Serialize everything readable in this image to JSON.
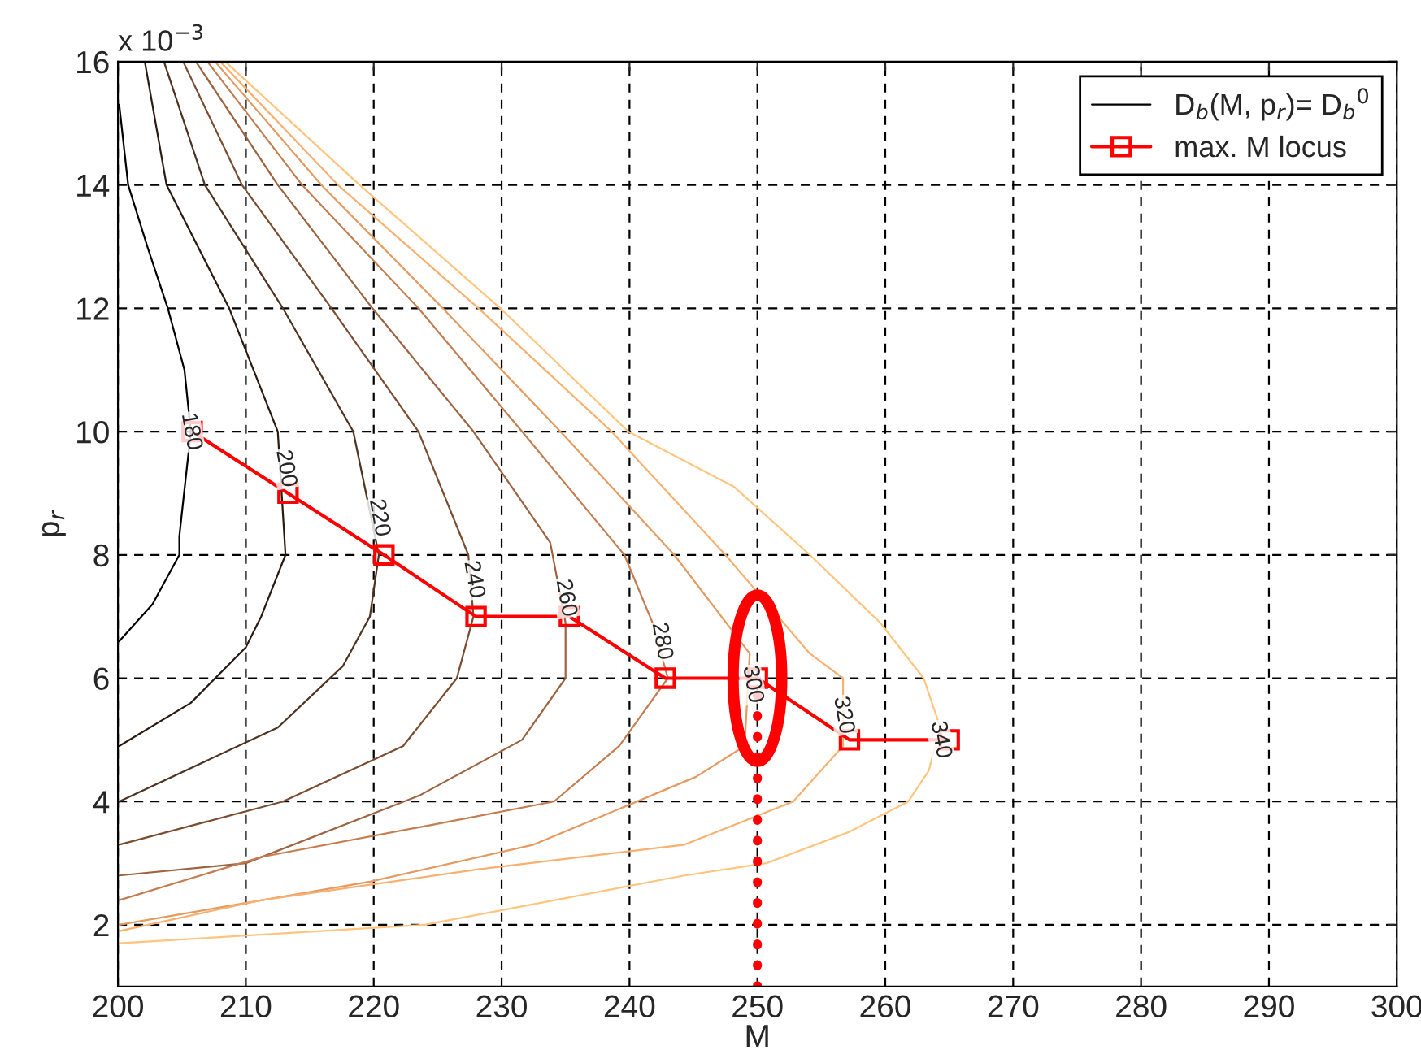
{
  "chart_data": {
    "type": "line",
    "xlabel": "M",
    "ylabel": "p$_{r}$",
    "xlim": [
      200,
      300
    ],
    "xticks": [
      200,
      210,
      220,
      230,
      240,
      250,
      260,
      270,
      280,
      290,
      300
    ],
    "ylim": [
      1,
      16
    ],
    "yticks": [
      2,
      4,
      6,
      8,
      10,
      12,
      14,
      16
    ],
    "grid": true,
    "legend": "top right",
    "marker": "none",
    "line_style": "solid",
    "annotations": [
      "x 10$^{−3}$",
      {
        "text": "180",
        "x": 205.7,
        "y": 10
      },
      {
        "text": "200",
        "x": 213.1,
        "y": 9.4
      },
      {
        "text": "220",
        "x": 220.4,
        "y": 8.6
      },
      {
        "text": "240",
        "x": 227.8,
        "y": 7.6
      },
      {
        "text": "260",
        "x": 235,
        "y": 7.3
      },
      {
        "text": "280",
        "x": 242.5,
        "y": 6.6
      },
      {
        "text": "300",
        "x": 249.6,
        "y": 5.9
      },
      {
        "text": "320",
        "x": 256.7,
        "y": 5.4
      },
      {
        "text": "340",
        "x": 264.3,
        "y": 5
      }
    ],
    "series": [
      {
        "name": "D$_{b}$(M, p$_{r}$)= D$_{b}$$^{0}$",
        "color": "#000000",
        "x": [
          200.1,
          200.8,
          202.3,
          203.9,
          205.2,
          205.7,
          204.8,
          204.8,
          202.7,
          200.1
        ],
        "values": [
          15.3,
          14,
          13,
          12,
          11,
          10,
          8.3,
          8,
          7.2,
          6.6
        ]
      },
      {
        "color": "#2a1a10",
        "x": [
          202.1,
          203.8,
          208.7,
          212.5,
          213.1,
          211.2,
          210,
          205.7,
          200.1
        ],
        "values": [
          16,
          14,
          12,
          10,
          8,
          7,
          6.5,
          5.6,
          4.9
        ]
      },
      {
        "color": "#4f3220",
        "x": [
          203.6,
          206.8,
          212.9,
          218.4,
          220.4,
          219.7,
          217.6,
          212.5,
          200.1
        ],
        "values": [
          16,
          14,
          12,
          10,
          8,
          7,
          6.2,
          5.2,
          4
        ]
      },
      {
        "color": "#7a4c30",
        "x": [
          205.1,
          209.7,
          216.7,
          223.5,
          227.4,
          227.8,
          226.5,
          222.3,
          212.9,
          200.1
        ],
        "values": [
          16,
          14,
          12,
          10,
          8,
          7,
          6,
          4.9,
          4,
          3.3
        ]
      },
      {
        "color": "#9e6340",
        "x": [
          206.1,
          212.5,
          219.9,
          227.8,
          233.8,
          235,
          235,
          231.6,
          223.6,
          210,
          200.1
        ],
        "values": [
          16,
          14,
          12,
          10,
          8.2,
          6.9,
          6,
          5,
          4.1,
          3,
          2.8
        ]
      },
      {
        "color": "#c47d50",
        "x": [
          207,
          214.4,
          223.5,
          231.6,
          239.6,
          241.8,
          243,
          239.2,
          234.1,
          224,
          211.2,
          200.1
        ],
        "values": [
          16,
          14,
          12,
          10,
          8,
          6.9,
          6,
          4.9,
          4,
          3.6,
          3.1,
          2.4
        ]
      },
      {
        "color": "#e59a60",
        "x": [
          207.6,
          215.9,
          225.4,
          234.6,
          243.5,
          249.4,
          249,
          245.2,
          232.5,
          219.7,
          200.1
        ],
        "values": [
          16,
          14,
          12,
          10,
          8,
          6.4,
          4.9,
          4.4,
          3.3,
          2.7,
          2
        ]
      },
      {
        "color": "#f7b070",
        "x": [
          208,
          217.2,
          228.2,
          238.6,
          247.5,
          254.1,
          256.7,
          256.7,
          252.8,
          244.3,
          228.2,
          211.2,
          200.1
        ],
        "values": [
          16,
          14,
          12,
          10,
          8,
          6.4,
          6,
          4.9,
          4,
          3.3,
          2.9,
          2.4,
          1.9
        ]
      },
      {
        "color": "#ffc57e",
        "x": [
          208.4,
          218.9,
          229.9,
          239.9,
          248.2,
          254.1,
          259.6,
          263,
          264.3,
          263.4,
          261.8,
          257.1,
          250.7,
          244.3,
          224,
          200.1
        ],
        "values": [
          16,
          14,
          12,
          10,
          9.1,
          8,
          6.9,
          6,
          5.2,
          4.5,
          4,
          3.5,
          3,
          2.8,
          2,
          1.7
        ]
      },
      {
        "name": "max. M locus",
        "color": "#ff0000",
        "marker": "square",
        "x": [
          205.8,
          213.3,
          220.8,
          228,
          235.3,
          242.8,
          250,
          257.2,
          265
        ],
        "values": [
          10,
          9,
          8,
          7,
          7,
          6,
          6,
          5,
          5
        ]
      },
      {
        "color": "#ff0000",
        "line_style": "dotted",
        "x": [
          250,
          250
        ],
        "values": [
          1,
          6
        ]
      }
    ]
  }
}
